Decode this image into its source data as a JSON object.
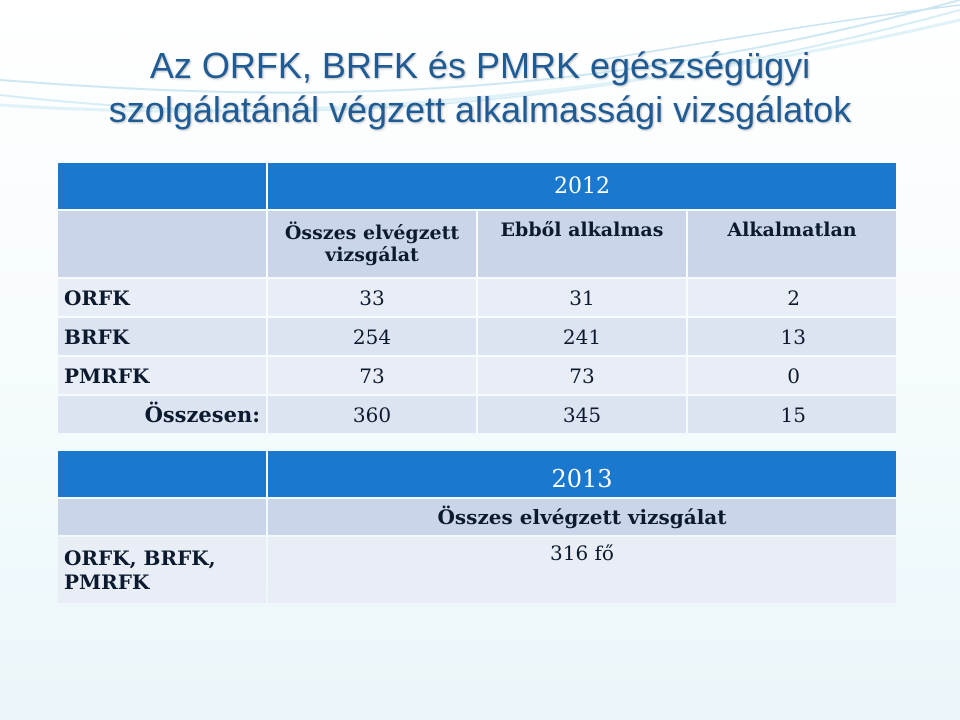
{
  "title": {
    "line1": "Az ORFK, BRFK és PMRK egészségügyi",
    "line2": "szolgálatánál végzett alkalmassági vizsgálatok"
  },
  "table2012": {
    "year": "2012",
    "headers": [
      "Összes elvégzett vizsgálat",
      "Ebből alkalmas",
      "Alkalmatlan"
    ],
    "rows": [
      {
        "label": "ORFK",
        "total": "33",
        "fit": "31",
        "unfit": "2"
      },
      {
        "label": "BRFK",
        "total": "254",
        "fit": "241",
        "unfit": "13"
      },
      {
        "label": "PMRFK",
        "total": "73",
        "fit": "73",
        "unfit": "0"
      }
    ],
    "sum": {
      "label": "Összesen:",
      "total": "360",
      "fit": "345",
      "unfit": "15"
    }
  },
  "table2013": {
    "year": "2013",
    "header": "Összes elvégzett vizsgálat",
    "row_label": "ORFK, BRFK, PMRFK",
    "value": "316 fő"
  }
}
